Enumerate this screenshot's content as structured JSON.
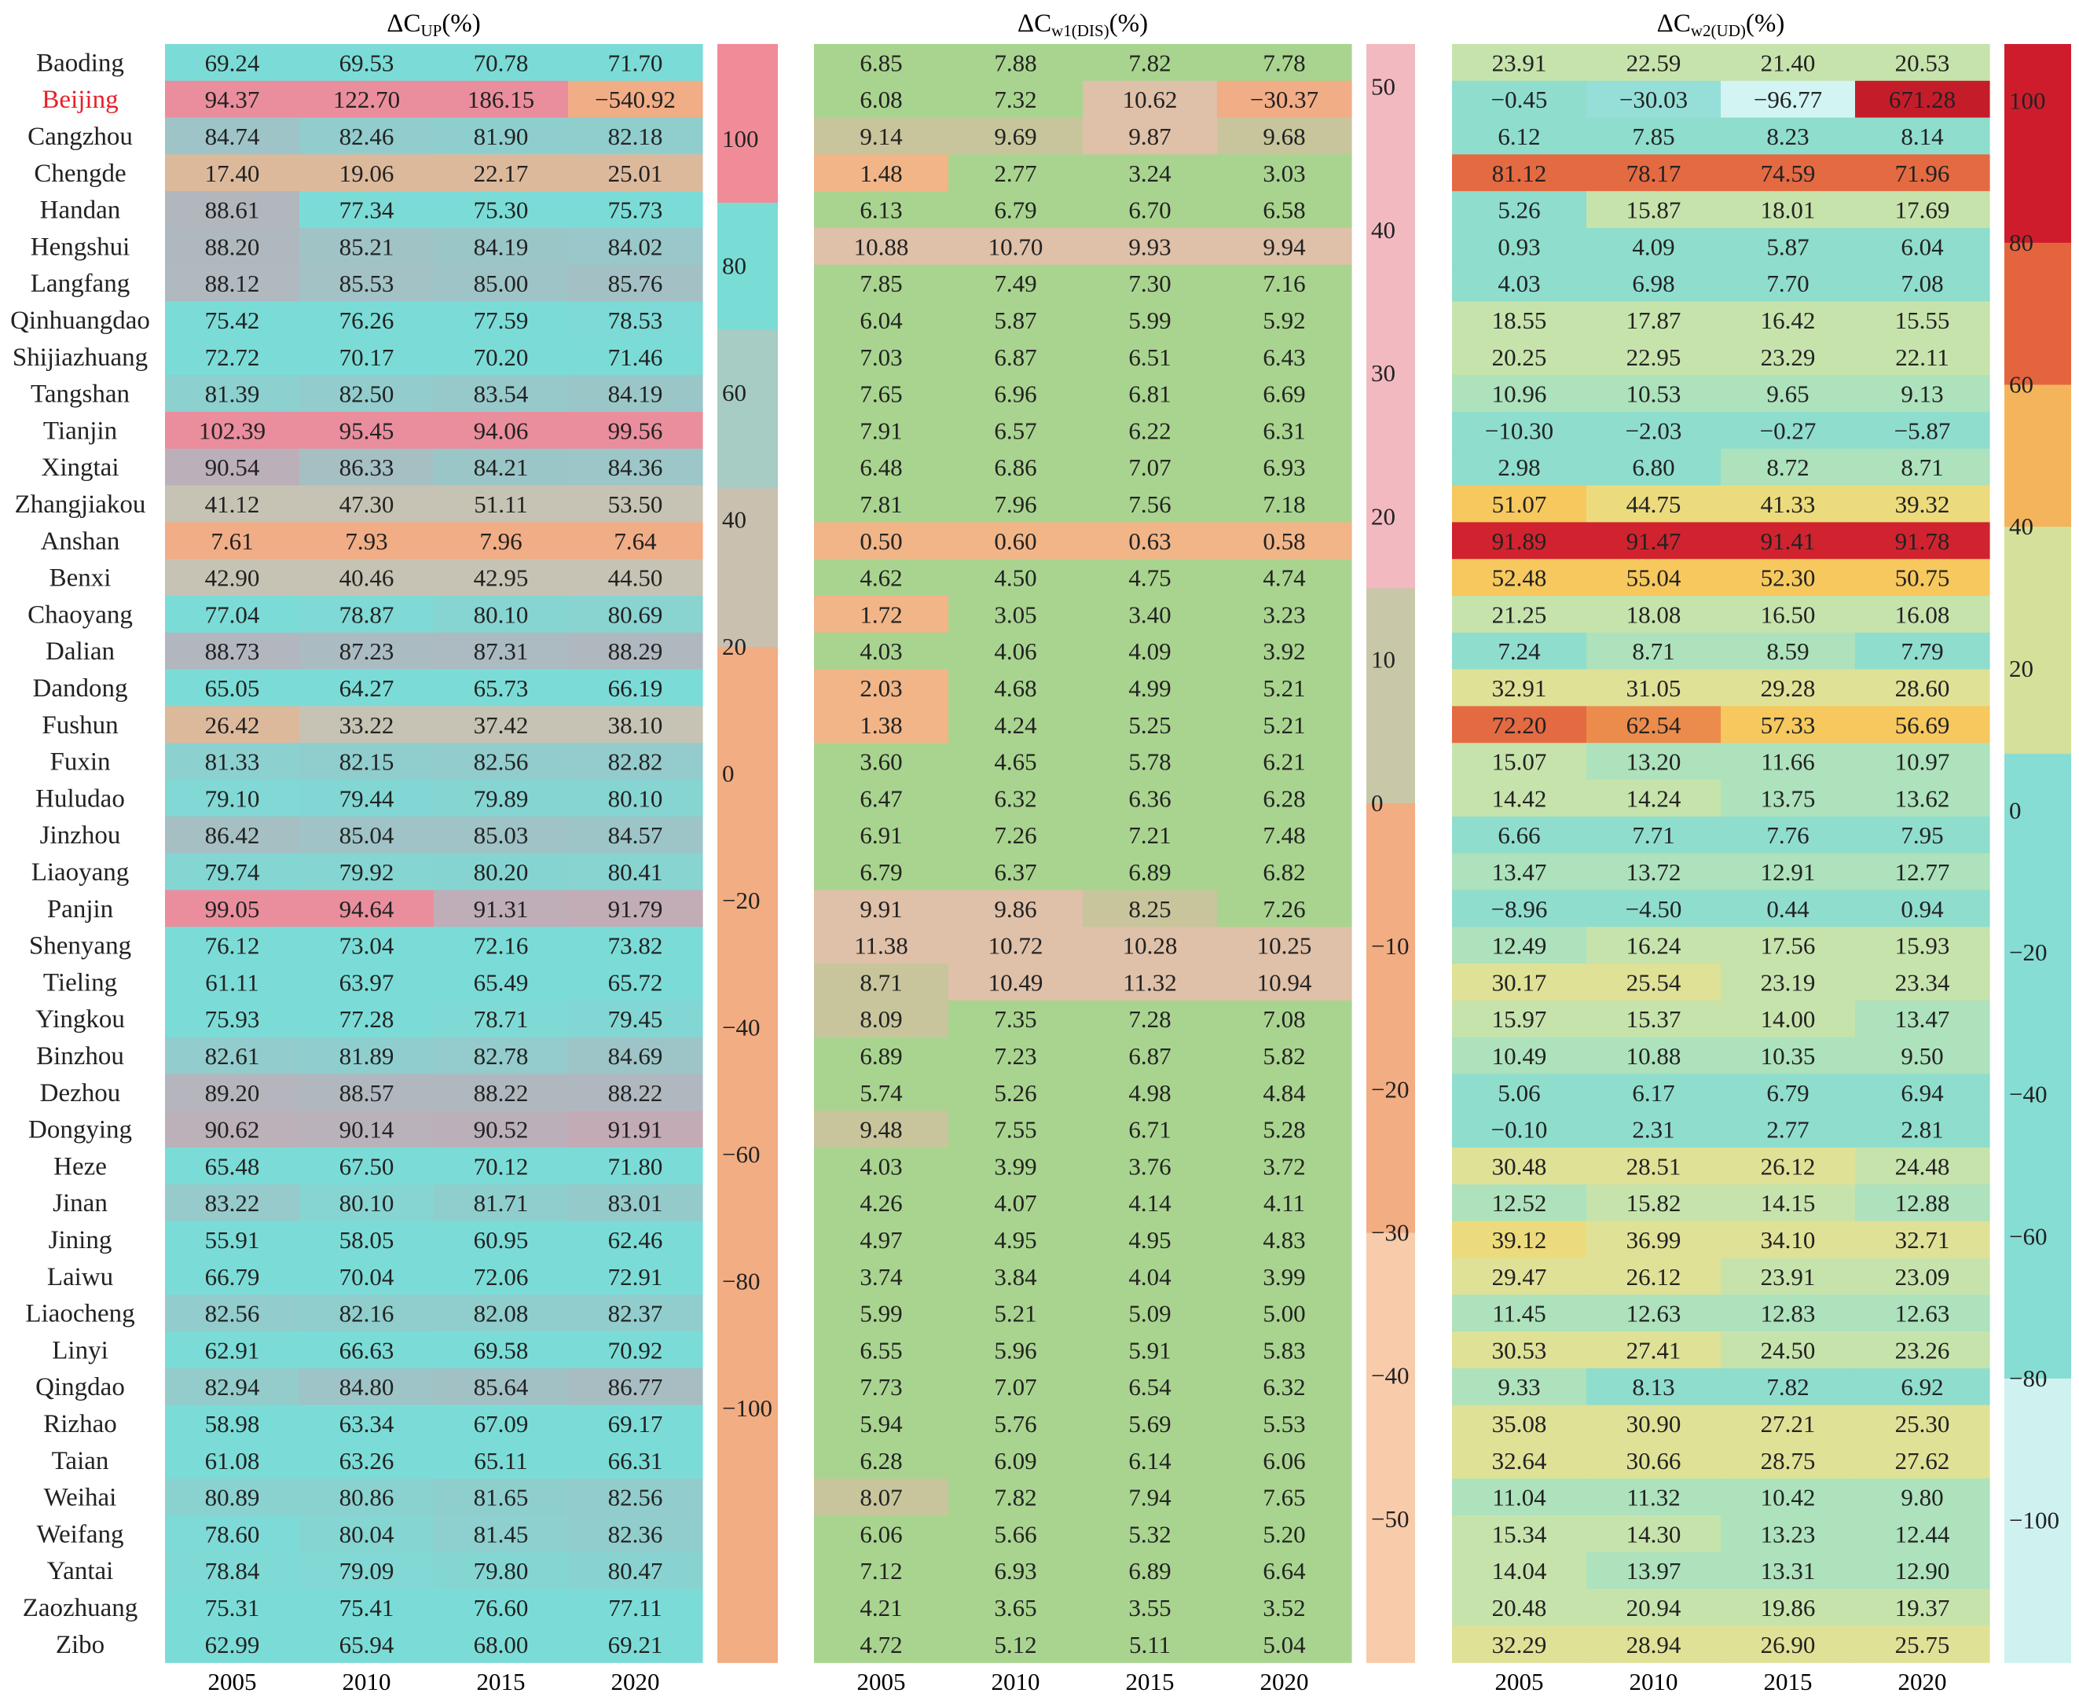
{
  "chart_data": {
    "type": "heatmap",
    "years": [
      "2005",
      "2010",
      "2015",
      "2020"
    ],
    "cities": [
      "Baoding",
      "Beijing",
      "Cangzhou",
      "Chengde",
      "Handan",
      "Hengshui",
      "Langfang",
      "Qinhuangdao",
      "Shijiazhuang",
      "Tangshan",
      "Tianjin",
      "Xingtai",
      "Zhangjiakou",
      "Anshan",
      "Benxi",
      "Chaoyang",
      "Dalian",
      "Dandong",
      "Fushun",
      "Fuxin",
      "Huludao",
      "Jinzhou",
      "Liaoyang",
      "Panjin",
      "Shenyang",
      "Tieling",
      "Yingkou",
      "Binzhou",
      "Dezhou",
      "Dongying",
      "Heze",
      "Jinan",
      "Jining",
      "Laiwu",
      "Liaocheng",
      "Linyi",
      "Qingdao",
      "Rizhao",
      "Taian",
      "Weihai",
      "Weifang",
      "Yantai",
      "Zaozhuang",
      "Zibo"
    ],
    "highlight_city": "Beijing",
    "highlight_color": "#e8202a",
    "panels": [
      {
        "title_main": "ΔC",
        "title_sub": "UP",
        "title_unit": "(%)",
        "colorbar": {
          "ticks": [
            "100",
            "80",
            "60",
            "40",
            "20",
            "0",
            "−20",
            "−40",
            "−60",
            "−80",
            "−100"
          ],
          "range": [
            -140,
            115
          ],
          "bands": [
            {
              "from": 90,
              "to": 115,
              "color": "#f08c98"
            },
            {
              "from": 70,
              "to": 90,
              "color": "#79ddd6"
            },
            {
              "from": 45,
              "to": 70,
              "color": "#a6ccc4"
            },
            {
              "from": 20,
              "to": 45,
              "color": "#c9c0b0"
            },
            {
              "from": -140,
              "to": 20,
              "color": "#f2ad82"
            }
          ]
        },
        "values": [
          [
            "69.24",
            "69.53",
            "70.78",
            "71.70"
          ],
          [
            "94.37",
            "122.70",
            "186.15",
            "−540.92"
          ],
          [
            "84.74",
            "82.46",
            "81.90",
            "82.18"
          ],
          [
            "17.40",
            "19.06",
            "22.17",
            "25.01"
          ],
          [
            "88.61",
            "77.34",
            "75.30",
            "75.73"
          ],
          [
            "88.20",
            "85.21",
            "84.19",
            "84.02"
          ],
          [
            "88.12",
            "85.53",
            "85.00",
            "85.76"
          ],
          [
            "75.42",
            "76.26",
            "77.59",
            "78.53"
          ],
          [
            "72.72",
            "70.17",
            "70.20",
            "71.46"
          ],
          [
            "81.39",
            "82.50",
            "83.54",
            "84.19"
          ],
          [
            "102.39",
            "95.45",
            "94.06",
            "99.56"
          ],
          [
            "90.54",
            "86.33",
            "84.21",
            "84.36"
          ],
          [
            "41.12",
            "47.30",
            "51.11",
            "53.50"
          ],
          [
            "7.61",
            "7.93",
            "7.96",
            "7.64"
          ],
          [
            "42.90",
            "40.46",
            "42.95",
            "44.50"
          ],
          [
            "77.04",
            "78.87",
            "80.10",
            "80.69"
          ],
          [
            "88.73",
            "87.23",
            "87.31",
            "88.29"
          ],
          [
            "65.05",
            "64.27",
            "65.73",
            "66.19"
          ],
          [
            "26.42",
            "33.22",
            "37.42",
            "38.10"
          ],
          [
            "81.33",
            "82.15",
            "82.56",
            "82.82"
          ],
          [
            "79.10",
            "79.44",
            "79.89",
            "80.10"
          ],
          [
            "86.42",
            "85.04",
            "85.03",
            "84.57"
          ],
          [
            "79.74",
            "79.92",
            "80.20",
            "80.41"
          ],
          [
            "99.05",
            "94.64",
            "91.31",
            "91.79"
          ],
          [
            "76.12",
            "73.04",
            "72.16",
            "73.82"
          ],
          [
            "61.11",
            "63.97",
            "65.49",
            "65.72"
          ],
          [
            "75.93",
            "77.28",
            "78.71",
            "79.45"
          ],
          [
            "82.61",
            "81.89",
            "82.78",
            "84.69"
          ],
          [
            "89.20",
            "88.57",
            "88.22",
            "88.22"
          ],
          [
            "90.62",
            "90.14",
            "90.52",
            "91.91"
          ],
          [
            "65.48",
            "67.50",
            "70.12",
            "71.80"
          ],
          [
            "83.22",
            "80.10",
            "81.71",
            "83.01"
          ],
          [
            "55.91",
            "58.05",
            "60.95",
            "62.46"
          ],
          [
            "66.79",
            "70.04",
            "72.06",
            "72.91"
          ],
          [
            "82.56",
            "82.16",
            "82.08",
            "82.37"
          ],
          [
            "62.91",
            "66.63",
            "69.58",
            "70.92"
          ],
          [
            "82.94",
            "84.80",
            "85.64",
            "86.77"
          ],
          [
            "58.98",
            "63.34",
            "67.09",
            "69.17"
          ],
          [
            "61.08",
            "63.26",
            "65.11",
            "66.31"
          ],
          [
            "80.89",
            "80.86",
            "81.65",
            "82.56"
          ],
          [
            "78.60",
            "80.04",
            "81.45",
            "82.36"
          ],
          [
            "78.84",
            "79.09",
            "79.80",
            "80.47"
          ],
          [
            "75.31",
            "75.41",
            "76.60",
            "77.11"
          ],
          [
            "62.99",
            "65.94",
            "68.00",
            "69.21"
          ]
        ]
      },
      {
        "title_main": "ΔC",
        "title_sub": "w1(DIS)",
        "title_unit": "(%)",
        "colorbar": {
          "ticks": [
            "50",
            "40",
            "30",
            "20",
            "10",
            "0",
            "−10",
            "−20",
            "−30",
            "−40",
            "−50"
          ],
          "range": [
            -60,
            53
          ],
          "bands": [
            {
              "from": 15,
              "to": 53,
              "color": "#f2b9c1"
            },
            {
              "from": 0,
              "to": 15,
              "color": "#c8c8a8"
            },
            {
              "from": -30,
              "to": 0,
              "color": "#f2ad82"
            },
            {
              "from": -60,
              "to": -30,
              "color": "#f8cbaa"
            }
          ]
        },
        "values": [
          [
            "6.85",
            "7.88",
            "7.82",
            "7.78"
          ],
          [
            "6.08",
            "7.32",
            "10.62",
            "−30.37"
          ],
          [
            "9.14",
            "9.69",
            "9.87",
            "9.68"
          ],
          [
            "1.48",
            "2.77",
            "3.24",
            "3.03"
          ],
          [
            "6.13",
            "6.79",
            "6.70",
            "6.58"
          ],
          [
            "10.88",
            "10.70",
            "9.93",
            "9.94"
          ],
          [
            "7.85",
            "7.49",
            "7.30",
            "7.16"
          ],
          [
            "6.04",
            "5.87",
            "5.99",
            "5.92"
          ],
          [
            "7.03",
            "6.87",
            "6.51",
            "6.43"
          ],
          [
            "7.65",
            "6.96",
            "6.81",
            "6.69"
          ],
          [
            "7.91",
            "6.57",
            "6.22",
            "6.31"
          ],
          [
            "6.48",
            "6.86",
            "7.07",
            "6.93"
          ],
          [
            "7.81",
            "7.96",
            "7.56",
            "7.18"
          ],
          [
            "0.50",
            "0.60",
            "0.63",
            "0.58"
          ],
          [
            "4.62",
            "4.50",
            "4.75",
            "4.74"
          ],
          [
            "1.72",
            "3.05",
            "3.40",
            "3.23"
          ],
          [
            "4.03",
            "4.06",
            "4.09",
            "3.92"
          ],
          [
            "2.03",
            "4.68",
            "4.99",
            "5.21"
          ],
          [
            "1.38",
            "4.24",
            "5.25",
            "5.21"
          ],
          [
            "3.60",
            "4.65",
            "5.78",
            "6.21"
          ],
          [
            "6.47",
            "6.32",
            "6.36",
            "6.28"
          ],
          [
            "6.91",
            "7.26",
            "7.21",
            "7.48"
          ],
          [
            "6.79",
            "6.37",
            "6.89",
            "6.82"
          ],
          [
            "9.91",
            "9.86",
            "8.25",
            "7.26"
          ],
          [
            "11.38",
            "10.72",
            "10.28",
            "10.25"
          ],
          [
            "8.71",
            "10.49",
            "11.32",
            "10.94"
          ],
          [
            "8.09",
            "7.35",
            "7.28",
            "7.08"
          ],
          [
            "6.89",
            "7.23",
            "6.87",
            "5.82"
          ],
          [
            "5.74",
            "5.26",
            "4.98",
            "4.84"
          ],
          [
            "9.48",
            "7.55",
            "6.71",
            "5.28"
          ],
          [
            "4.03",
            "3.99",
            "3.76",
            "3.72"
          ],
          [
            "4.26",
            "4.07",
            "4.14",
            "4.11"
          ],
          [
            "4.97",
            "4.95",
            "4.95",
            "4.83"
          ],
          [
            "3.74",
            "3.84",
            "4.04",
            "3.99"
          ],
          [
            "5.99",
            "5.21",
            "5.09",
            "5.00"
          ],
          [
            "6.55",
            "5.96",
            "5.91",
            "5.83"
          ],
          [
            "7.73",
            "7.07",
            "6.54",
            "6.32"
          ],
          [
            "5.94",
            "5.76",
            "5.69",
            "5.53"
          ],
          [
            "6.28",
            "6.09",
            "6.14",
            "6.06"
          ],
          [
            "8.07",
            "7.82",
            "7.94",
            "7.65"
          ],
          [
            "6.06",
            "5.66",
            "5.32",
            "5.20"
          ],
          [
            "7.12",
            "6.93",
            "6.89",
            "6.64"
          ],
          [
            "4.21",
            "3.65",
            "3.55",
            "3.52"
          ],
          [
            "4.72",
            "5.12",
            "5.11",
            "5.04"
          ]
        ]
      },
      {
        "title_main": "ΔC",
        "title_sub": "w2(UD)",
        "title_unit": "(%)",
        "colorbar": {
          "ticks": [
            "100",
            "80",
            "60",
            "40",
            "20",
            "0",
            "−20",
            "−40",
            "−60",
            "−80",
            "−100"
          ],
          "range": [
            -120,
            108
          ],
          "bands": [
            {
              "from": 80,
              "to": 108,
              "color": "#cf1c2c"
            },
            {
              "from": 60,
              "to": 80,
              "color": "#e4643e"
            },
            {
              "from": 40,
              "to": 60,
              "color": "#f4b45c"
            },
            {
              "from": 8,
              "to": 40,
              "color": "#d5e09a"
            },
            {
              "from": -80,
              "to": 8,
              "color": "#86ddd4"
            },
            {
              "from": -120,
              "to": -80,
              "color": "#cff2f1"
            }
          ]
        },
        "values": [
          [
            "23.91",
            "22.59",
            "21.40",
            "20.53"
          ],
          [
            "−0.45",
            "−30.03",
            "−96.77",
            "671.28"
          ],
          [
            "6.12",
            "7.85",
            "8.23",
            "8.14"
          ],
          [
            "81.12",
            "78.17",
            "74.59",
            "71.96"
          ],
          [
            "5.26",
            "15.87",
            "18.01",
            "17.69"
          ],
          [
            "0.93",
            "4.09",
            "5.87",
            "6.04"
          ],
          [
            "4.03",
            "6.98",
            "7.70",
            "7.08"
          ],
          [
            "18.55",
            "17.87",
            "16.42",
            "15.55"
          ],
          [
            "20.25",
            "22.95",
            "23.29",
            "22.11"
          ],
          [
            "10.96",
            "10.53",
            "9.65",
            "9.13"
          ],
          [
            "−10.30",
            "−2.03",
            "−0.27",
            "−5.87"
          ],
          [
            "2.98",
            "6.80",
            "8.72",
            "8.71"
          ],
          [
            "51.07",
            "44.75",
            "41.33",
            "39.32"
          ],
          [
            "91.89",
            "91.47",
            "91.41",
            "91.78"
          ],
          [
            "52.48",
            "55.04",
            "52.30",
            "50.75"
          ],
          [
            "21.25",
            "18.08",
            "16.50",
            "16.08"
          ],
          [
            "7.24",
            "8.71",
            "8.59",
            "7.79"
          ],
          [
            "32.91",
            "31.05",
            "29.28",
            "28.60"
          ],
          [
            "72.20",
            "62.54",
            "57.33",
            "56.69"
          ],
          [
            "15.07",
            "13.20",
            "11.66",
            "10.97"
          ],
          [
            "14.42",
            "14.24",
            "13.75",
            "13.62"
          ],
          [
            "6.66",
            "7.71",
            "7.76",
            "7.95"
          ],
          [
            "13.47",
            "13.72",
            "12.91",
            "12.77"
          ],
          [
            "−8.96",
            "−4.50",
            "0.44",
            "0.94"
          ],
          [
            "12.49",
            "16.24",
            "17.56",
            "15.93"
          ],
          [
            "30.17",
            "25.54",
            "23.19",
            "23.34"
          ],
          [
            "15.97",
            "15.37",
            "14.00",
            "13.47"
          ],
          [
            "10.49",
            "10.88",
            "10.35",
            "9.50"
          ],
          [
            "5.06",
            "6.17",
            "6.79",
            "6.94"
          ],
          [
            "−0.10",
            "2.31",
            "2.77",
            "2.81"
          ],
          [
            "30.48",
            "28.51",
            "26.12",
            "24.48"
          ],
          [
            "12.52",
            "15.82",
            "14.15",
            "12.88"
          ],
          [
            "39.12",
            "36.99",
            "34.10",
            "32.71"
          ],
          [
            "29.47",
            "26.12",
            "23.91",
            "23.09"
          ],
          [
            "11.45",
            "12.63",
            "12.83",
            "12.63"
          ],
          [
            "30.53",
            "27.41",
            "24.50",
            "23.26"
          ],
          [
            "9.33",
            "8.13",
            "7.82",
            "6.92"
          ],
          [
            "35.08",
            "30.90",
            "27.21",
            "25.30"
          ],
          [
            "32.64",
            "30.66",
            "28.75",
            "27.62"
          ],
          [
            "11.04",
            "11.32",
            "10.42",
            "9.80"
          ],
          [
            "15.34",
            "14.30",
            "13.23",
            "12.44"
          ],
          [
            "14.04",
            "13.97",
            "13.31",
            "12.90"
          ],
          [
            "20.48",
            "20.94",
            "19.86",
            "19.37"
          ],
          [
            "32.29",
            "28.94",
            "26.90",
            "25.75"
          ]
        ]
      }
    ]
  }
}
